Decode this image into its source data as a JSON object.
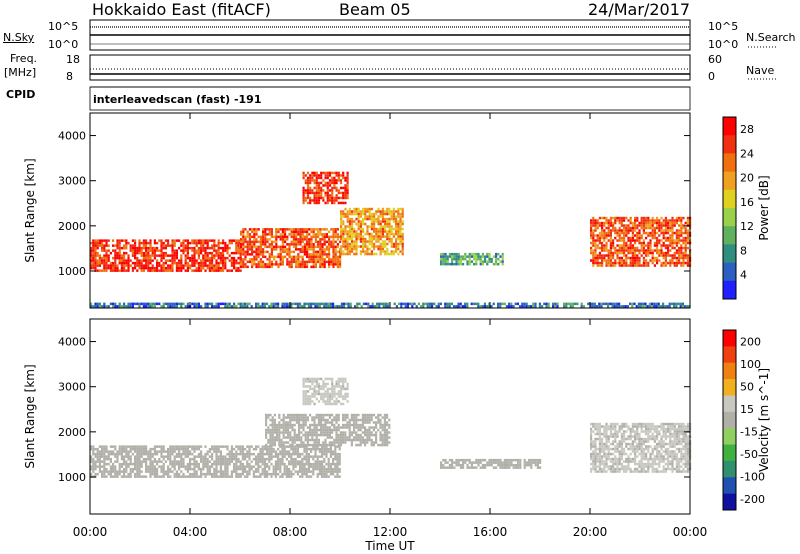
{
  "header": {
    "title": "Hokkaido East (fitACF)",
    "beam": "Beam 05",
    "date": "24/Mar/2017"
  },
  "top_panels": {
    "nsky_label": "N.Sky",
    "nsky_tick_high": "10^5",
    "nsky_tick_low": "10^0",
    "nsearch_label": "N.Search",
    "nsearch_tick_high": "10^5",
    "nsearch_tick_low": "10^0",
    "freq_label_line1": "Freq.",
    "freq_label_line2": "[MHz]",
    "freq_tick_high": "18",
    "freq_tick_low": "8",
    "nave_label": "Nave",
    "nave_tick_high": "60",
    "nave_tick_low": "0",
    "cpid_label": "CPID",
    "cpid_text": "interleavedscan (fast) -191"
  },
  "x_axis": {
    "label": "Time UT",
    "ticks": [
      "00:00",
      "04:00",
      "08:00",
      "12:00",
      "16:00",
      "20:00",
      "00:00"
    ]
  },
  "colors": {
    "power_scale": [
      "#1f1fff",
      "#2b5fc0",
      "#2f8f7f",
      "#5fb05f",
      "#9ad04a",
      "#e0d020",
      "#f0a020",
      "#f07010",
      "#f03010",
      "#ff0000"
    ],
    "velocity_scale": [
      "#ff0000",
      "#f04010",
      "#f08010",
      "#f0b020",
      "#c8c8c0",
      "#b0b0a8",
      "#90d060",
      "#40b040",
      "#2f8f6f",
      "#2050b0",
      "#1010a0"
    ]
  },
  "chart_data": [
    {
      "type": "heatmap",
      "panel": "power",
      "ylabel": "Slant Range [km]",
      "xlabel": "",
      "x_ticks": [
        "00:00",
        "04:00",
        "08:00",
        "12:00",
        "16:00",
        "20:00",
        "00:00"
      ],
      "y_ticks": [
        "1000",
        "2000",
        "3000",
        "4000"
      ],
      "ylim": [
        180,
        4500
      ],
      "colorbar_label": "Power [dB]",
      "colorbar_ticks": [
        "4",
        "8",
        "12",
        "16",
        "20",
        "24",
        "28"
      ],
      "colorbar_range": [
        0,
        30
      ],
      "regions": [
        {
          "t": [
            0.0,
            6.0
          ],
          "r": [
            1000,
            1700
          ],
          "power": 26
        },
        {
          "t": [
            6.0,
            10.0
          ],
          "r": [
            1100,
            1950
          ],
          "power": 24
        },
        {
          "t": [
            8.5,
            10.3
          ],
          "r": [
            2500,
            3200
          ],
          "power": 26
        },
        {
          "t": [
            10.0,
            12.5
          ],
          "r": [
            1400,
            2400
          ],
          "power": 20
        },
        {
          "t": [
            14.0,
            16.5
          ],
          "r": [
            1150,
            1400
          ],
          "power": 10
        },
        {
          "t": [
            20.0,
            24.0
          ],
          "r": [
            1100,
            2200
          ],
          "power": 24
        },
        {
          "t": [
            0.0,
            24.0
          ],
          "r": [
            200,
            300
          ],
          "power": 6
        }
      ]
    },
    {
      "type": "heatmap",
      "panel": "velocity",
      "ylabel": "Slant Range [km]",
      "xlabel": "Time UT",
      "x_ticks": [
        "00:00",
        "04:00",
        "08:00",
        "12:00",
        "16:00",
        "20:00",
        "00:00"
      ],
      "y_ticks": [
        "1000",
        "2000",
        "3000",
        "4000"
      ],
      "ylim": [
        180,
        4500
      ],
      "colorbar_label": "Velocity [m s^-1]",
      "colorbar_ticks": [
        "200",
        "100",
        "50",
        "15",
        "-15",
        "-50",
        "-100",
        "-200"
      ],
      "colorbar_range": [
        -250,
        250
      ],
      "regions": [
        {
          "t": [
            0.0,
            10.0
          ],
          "r": [
            1000,
            1700
          ],
          "velocity": 0
        },
        {
          "t": [
            7.0,
            12.0
          ],
          "r": [
            1700,
            2400
          ],
          "velocity": 0
        },
        {
          "t": [
            8.5,
            10.3
          ],
          "r": [
            2600,
            3200
          ],
          "velocity": 40
        },
        {
          "t": [
            14.0,
            18.0
          ],
          "r": [
            1200,
            1400
          ],
          "velocity": 0
        },
        {
          "t": [
            20.0,
            24.0
          ],
          "r": [
            1100,
            2200
          ],
          "velocity": 30
        }
      ]
    }
  ]
}
